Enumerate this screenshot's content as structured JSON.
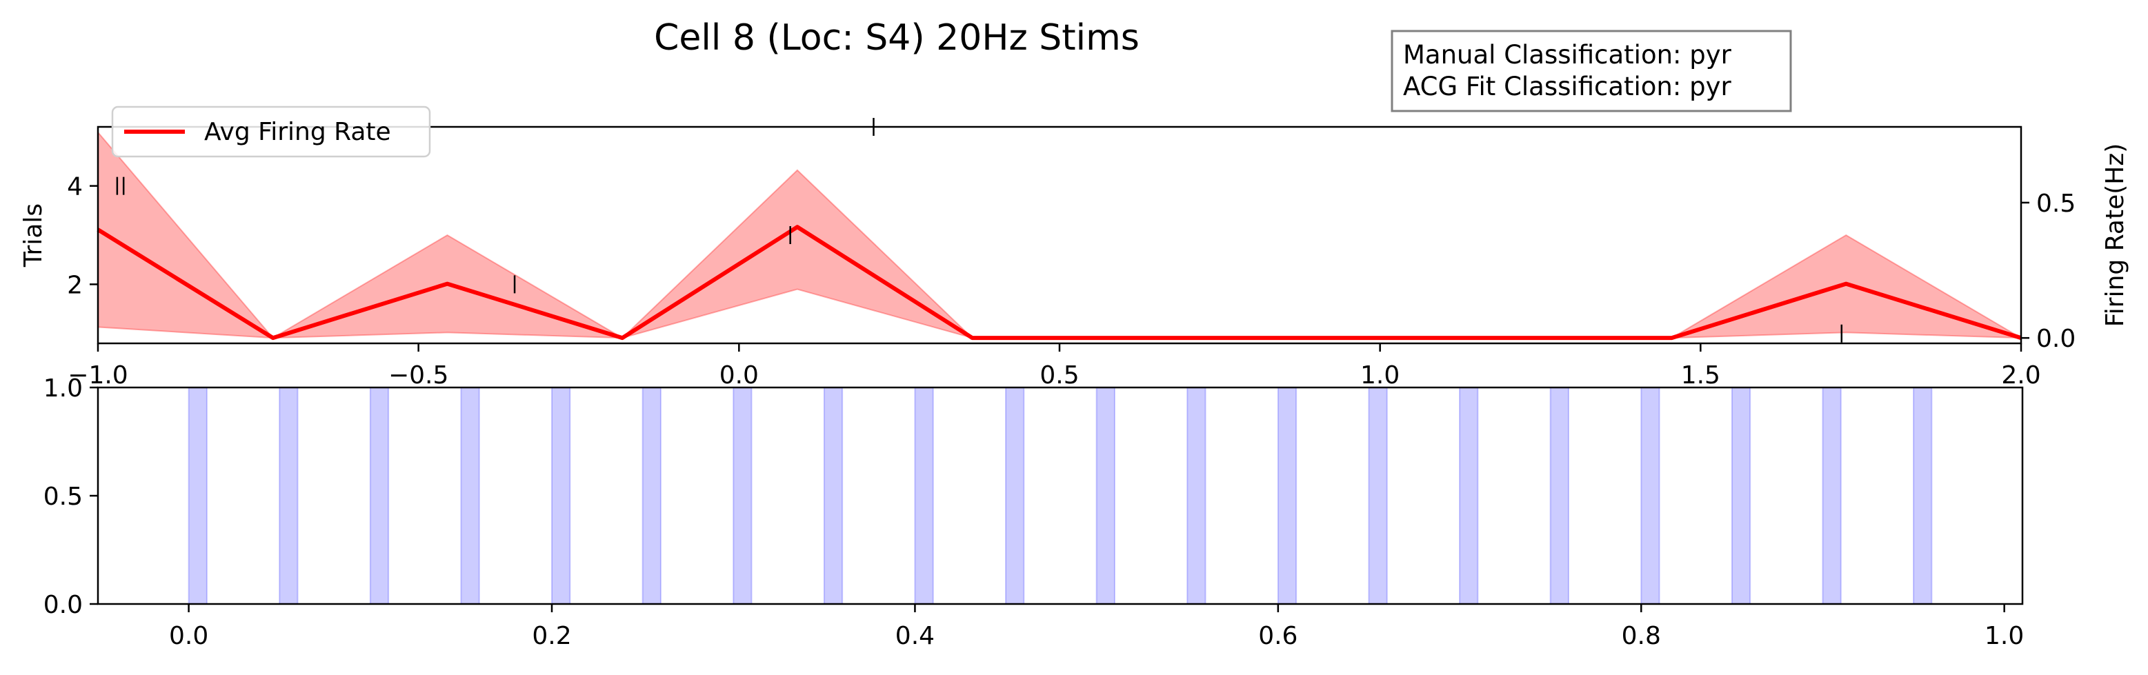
{
  "chart_data": {
    "title": "Cell 8 (Loc: S4) 20Hz Stims",
    "info_box": {
      "manual_classification": "Manual Classification: pyr",
      "acg_classification": "ACG Fit Classification: pyr"
    },
    "colors": {
      "rate_line": "#ff0000",
      "rate_band": "#ff0000",
      "stim_span": "#0000ff",
      "raster": "#000000"
    },
    "top": {
      "type": "line",
      "xlim": [
        -1.0,
        2.0
      ],
      "x_ticks": [
        -1.0,
        -0.5,
        0.0,
        0.5,
        1.0,
        1.5,
        2.0
      ],
      "x_tick_labels": [
        "−1.0",
        "−0.5",
        "0.0",
        "0.5",
        "1.0",
        "1.5",
        "2.0"
      ],
      "left_ylabel": "Trials",
      "left_ylim": [
        0.8,
        5.2
      ],
      "left_ticks": [
        2,
        4
      ],
      "left_tick_labels": [
        "2",
        "4"
      ],
      "right_ylabel": "Firing Rate(Hz)",
      "right_ylim": [
        -0.02,
        0.78
      ],
      "right_ticks": [
        0.0,
        0.5
      ],
      "right_tick_labels": [
        "0.0",
        "0.5"
      ],
      "legend": {
        "label": "Avg Firing Rate",
        "placement": "upper-left"
      },
      "series": [
        {
          "name": "Avg Firing Rate",
          "x": [
            -1.0,
            -0.727,
            -0.455,
            -0.182,
            0.091,
            0.364,
            0.636,
            0.909,
            1.182,
            1.455,
            1.727,
            2.0
          ],
          "y": [
            0.4,
            0.0,
            0.2,
            0.0,
            0.41,
            0.0,
            0.0,
            0.0,
            0.0,
            0.0,
            0.2,
            0.0
          ],
          "band_upper": [
            0.76,
            0.0,
            0.38,
            0.0,
            0.62,
            0.0,
            0.0,
            0.0,
            0.0,
            0.0,
            0.38,
            0.0
          ],
          "band_lower": [
            0.04,
            0.0,
            0.02,
            0.0,
            0.18,
            0.0,
            0.0,
            0.0,
            0.0,
            0.0,
            0.02,
            0.0
          ]
        }
      ],
      "raster_spikes": [
        {
          "t": -0.97,
          "trial": 4.0
        },
        {
          "t": -0.96,
          "trial": 4.0
        },
        {
          "t": -0.35,
          "trial": 2.0
        },
        {
          "t": 0.08,
          "trial": 3.0
        },
        {
          "t": 0.21,
          "trial": 5.2
        },
        {
          "t": 1.72,
          "trial": 1.0
        }
      ]
    },
    "bottom": {
      "type": "bar",
      "xlim": [
        -0.05,
        1.01
      ],
      "ylim": [
        0.0,
        1.0
      ],
      "x_ticks": [
        0.0,
        0.2,
        0.4,
        0.6,
        0.8,
        1.0
      ],
      "x_tick_labels": [
        "0.0",
        "0.2",
        "0.4",
        "0.6",
        "0.8",
        "1.0"
      ],
      "y_ticks": [
        0.0,
        0.5,
        1.0
      ],
      "y_tick_labels": [
        "0.0",
        "0.5",
        "1.0"
      ],
      "stim_width": 0.01,
      "stim_onsets": [
        0.0,
        0.05,
        0.1,
        0.15,
        0.2,
        0.25,
        0.3,
        0.35,
        0.4,
        0.45,
        0.5,
        0.55,
        0.6,
        0.65,
        0.7,
        0.75,
        0.8,
        0.85,
        0.9,
        0.95
      ]
    }
  }
}
